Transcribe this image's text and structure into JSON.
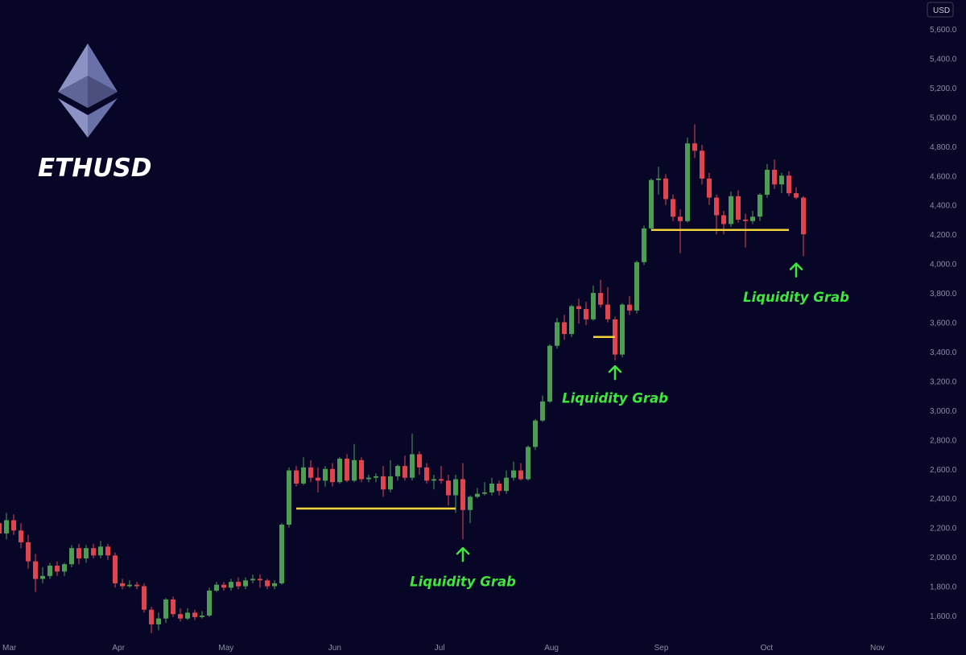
{
  "logo": {
    "symbol": "ethereum-diamond",
    "text": "ETHUSD"
  },
  "price_axis": {
    "currency": "USD"
  },
  "colors": {
    "background": "#080626",
    "up": "#4d9e55",
    "down": "#e0454f",
    "level": "#f3d33a",
    "annotation": "#3ee63e",
    "axis_text": "#8a8da3"
  },
  "chart_data": {
    "type": "candlestick",
    "title": "ETHUSD",
    "ylim": [
      1450,
      5650
    ],
    "y_ticks": [
      1600,
      1800,
      2000,
      2200,
      2400,
      2600,
      2800,
      3000,
      3200,
      3400,
      3600,
      3800,
      4000,
      4200,
      4400,
      4600,
      4800,
      5000,
      5200,
      5400,
      5600
    ],
    "x_ticks": [
      {
        "label": "Mar",
        "index": 0
      },
      {
        "label": "Apr",
        "index": 31
      },
      {
        "label": "May",
        "index": 61
      },
      {
        "label": "Jun",
        "index": 92
      },
      {
        "label": "Jul",
        "index": 122
      },
      {
        "label": "Aug",
        "index": 153
      },
      {
        "label": "Sep",
        "index": 184
      },
      {
        "label": "Oct",
        "index": 214
      },
      {
        "label": "Nov",
        "index": 245
      }
    ],
    "candles": [
      [
        2300,
        2230,
        2560,
        2180
      ],
      [
        2230,
        2160,
        2290,
        2120
      ],
      [
        2160,
        2250,
        2300,
        2120
      ],
      [
        2250,
        2180,
        2290,
        2150
      ],
      [
        2180,
        2100,
        2230,
        2060
      ],
      [
        2100,
        1970,
        2150,
        1920
      ],
      [
        1970,
        1850,
        2020,
        1760
      ],
      [
        1850,
        1870,
        1930,
        1820
      ],
      [
        1870,
        1940,
        1960,
        1850
      ],
      [
        1940,
        1900,
        1970,
        1870
      ],
      [
        1900,
        1950,
        1960,
        1870
      ],
      [
        1950,
        2060,
        2080,
        1930
      ],
      [
        2060,
        1990,
        2090,
        1950
      ],
      [
        1990,
        2060,
        2080,
        1960
      ],
      [
        2060,
        2010,
        2090,
        1990
      ],
      [
        2010,
        2070,
        2110,
        1990
      ],
      [
        2070,
        2010,
        2090,
        1980
      ],
      [
        2010,
        1820,
        2030,
        1790
      ],
      [
        1820,
        1800,
        1850,
        1780
      ],
      [
        1800,
        1810,
        1840,
        1790
      ],
      [
        1810,
        1800,
        1830,
        1780
      ],
      [
        1800,
        1640,
        1820,
        1620
      ],
      [
        1640,
        1540,
        1660,
        1480
      ],
      [
        1540,
        1580,
        1620,
        1500
      ],
      [
        1580,
        1710,
        1720,
        1550
      ],
      [
        1710,
        1610,
        1730,
        1590
      ],
      [
        1610,
        1580,
        1650,
        1560
      ],
      [
        1580,
        1620,
        1650,
        1570
      ],
      [
        1620,
        1590,
        1640,
        1570
      ],
      [
        1590,
        1600,
        1630,
        1580
      ],
      [
        1600,
        1770,
        1790,
        1590
      ],
      [
        1770,
        1810,
        1830,
        1760
      ],
      [
        1810,
        1790,
        1830,
        1770
      ],
      [
        1790,
        1830,
        1850,
        1770
      ],
      [
        1830,
        1800,
        1860,
        1780
      ],
      [
        1800,
        1840,
        1860,
        1780
      ],
      [
        1840,
        1850,
        1880,
        1820
      ],
      [
        1850,
        1840,
        1880,
        1790
      ],
      [
        1840,
        1800,
        1850,
        1780
      ],
      [
        1800,
        1820,
        1840,
        1780
      ],
      [
        1820,
        2220,
        2230,
        1810
      ],
      [
        2220,
        2590,
        2610,
        2200
      ],
      [
        2590,
        2500,
        2620,
        2480
      ],
      [
        2500,
        2610,
        2680,
        2490
      ],
      [
        2610,
        2540,
        2660,
        2510
      ],
      [
        2540,
        2520,
        2610,
        2440
      ],
      [
        2520,
        2600,
        2620,
        2480
      ],
      [
        2600,
        2510,
        2640,
        2480
      ],
      [
        2510,
        2670,
        2680,
        2500
      ],
      [
        2670,
        2520,
        2700,
        2510
      ],
      [
        2520,
        2660,
        2770,
        2510
      ],
      [
        2660,
        2530,
        2680,
        2510
      ],
      [
        2530,
        2540,
        2560,
        2510
      ],
      [
        2540,
        2550,
        2570,
        2510
      ],
      [
        2550,
        2460,
        2620,
        2410
      ],
      [
        2460,
        2550,
        2660,
        2440
      ],
      [
        2550,
        2620,
        2630,
        2520
      ],
      [
        2620,
        2540,
        2690,
        2520
      ],
      [
        2540,
        2700,
        2840,
        2520
      ],
      [
        2700,
        2610,
        2720,
        2560
      ],
      [
        2610,
        2520,
        2640,
        2500
      ],
      [
        2520,
        2530,
        2560,
        2460
      ],
      [
        2530,
        2520,
        2620,
        2500
      ],
      [
        2520,
        2420,
        2560,
        2350
      ],
      [
        2420,
        2530,
        2560,
        2300
      ],
      [
        2530,
        2320,
        2640,
        2120
      ],
      [
        2320,
        2410,
        2420,
        2230
      ],
      [
        2410,
        2430,
        2470,
        2400
      ],
      [
        2430,
        2440,
        2510,
        2420
      ],
      [
        2440,
        2500,
        2540,
        2420
      ],
      [
        2500,
        2450,
        2520,
        2420
      ],
      [
        2450,
        2540,
        2590,
        2430
      ],
      [
        2540,
        2590,
        2650,
        2520
      ],
      [
        2590,
        2530,
        2640,
        2520
      ],
      [
        2530,
        2750,
        2760,
        2520
      ],
      [
        2750,
        2930,
        2940,
        2730
      ],
      [
        2930,
        3060,
        3100,
        2920
      ],
      [
        3060,
        3440,
        3450,
        3050
      ],
      [
        3440,
        3600,
        3630,
        3420
      ],
      [
        3600,
        3520,
        3650,
        3480
      ],
      [
        3520,
        3710,
        3720,
        3500
      ],
      [
        3710,
        3690,
        3760,
        3590
      ],
      [
        3690,
        3620,
        3740,
        3580
      ],
      [
        3620,
        3800,
        3850,
        3610
      ],
      [
        3800,
        3720,
        3890,
        3700
      ],
      [
        3720,
        3620,
        3840,
        3600
      ],
      [
        3620,
        3380,
        3640,
        3340
      ],
      [
        3380,
        3720,
        3730,
        3360
      ],
      [
        3720,
        3680,
        3780,
        3650
      ],
      [
        3680,
        4010,
        4020,
        3660
      ],
      [
        4010,
        4240,
        4260,
        3990
      ],
      [
        4240,
        4570,
        4580,
        4230
      ],
      [
        4570,
        4580,
        4660,
        4470
      ],
      [
        4580,
        4440,
        4610,
        4400
      ],
      [
        4440,
        4320,
        4470,
        4290
      ],
      [
        4320,
        4290,
        4370,
        4070
      ],
      [
        4290,
        4820,
        4860,
        4280
      ],
      [
        4820,
        4770,
        4950,
        4720
      ],
      [
        4770,
        4580,
        4810,
        4540
      ],
      [
        4580,
        4450,
        4620,
        4400
      ],
      [
        4450,
        4330,
        4470,
        4200
      ],
      [
        4330,
        4270,
        4360,
        4200
      ],
      [
        4270,
        4460,
        4490,
        4250
      ],
      [
        4460,
        4300,
        4500,
        4280
      ],
      [
        4300,
        4290,
        4340,
        4110
      ],
      [
        4290,
        4320,
        4360,
        4270
      ],
      [
        4320,
        4470,
        4480,
        4290
      ],
      [
        4470,
        4640,
        4680,
        4450
      ],
      [
        4640,
        4540,
        4710,
        4510
      ],
      [
        4540,
        4600,
        4620,
        4480
      ],
      [
        4600,
        4480,
        4630,
        4460
      ],
      [
        4480,
        4450,
        4520,
        4440
      ],
      [
        4450,
        4200,
        4460,
        4050
      ]
    ],
    "levels": [
      {
        "price": 2330,
        "from_index": 42,
        "to_index": 64
      },
      {
        "price": 3500,
        "from_index": 83,
        "to_index": 86
      },
      {
        "price": 4230,
        "from_index": 91,
        "to_index": 110
      }
    ],
    "annotations": [
      {
        "text": "Liquidity Grab",
        "index": 65,
        "arrow_price": 2060,
        "text_price": 1800
      },
      {
        "text": "Liquidity Grab",
        "index": 86,
        "arrow_price": 3300,
        "text_price": 3050
      },
      {
        "text": "Liquidity Grab",
        "index": 111,
        "arrow_price": 4000,
        "text_price": 3740
      }
    ]
  }
}
